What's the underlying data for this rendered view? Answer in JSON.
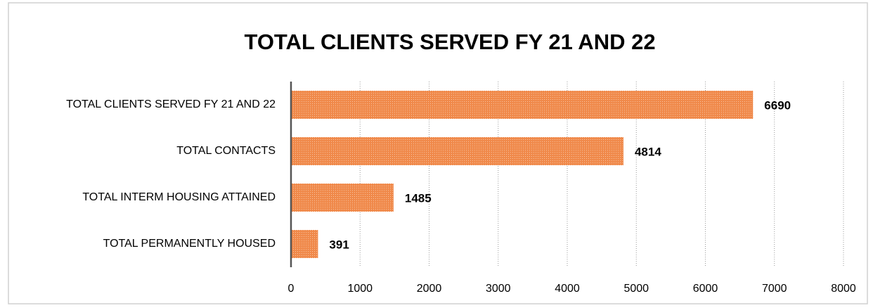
{
  "chart_data": {
    "type": "barh",
    "title": "TOTAL CLIENTS SERVED FY 21 AND 22",
    "categories": [
      "TOTAL CLIENTS SERVED FY 21 AND 22",
      "TOTAL CONTACTS",
      "TOTAL INTERM HOUSING ATTAINED",
      "TOTAL PERMANENTLY HOUSED"
    ],
    "values": [
      6690,
      4814,
      1485,
      391
    ],
    "color": "#f0894a",
    "xlim": [
      0,
      8000
    ],
    "xticks": [
      0,
      1000,
      2000,
      3000,
      4000,
      5000,
      6000,
      7000,
      8000
    ],
    "grid": true
  }
}
